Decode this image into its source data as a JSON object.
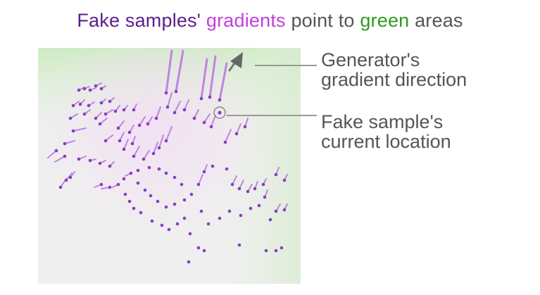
{
  "title": {
    "part1": "Fake samples'",
    "part2": "gradients",
    "part3": "point to",
    "part4": "green",
    "part5": "areas"
  },
  "annotations": {
    "gradient_direction": {
      "line1": "Generator's",
      "line2": "gradient direction"
    },
    "sample_location": {
      "line1": "Fake sample's",
      "line2": "current location"
    }
  },
  "colors": {
    "title_dark": "#5b1d8c",
    "title_magenta": "#c43fdc",
    "title_gray": "#555555",
    "title_green": "#2f9a22",
    "sample_dot": "#8a3cc4",
    "gradient_trail": "#b264e0",
    "green_region": "#cfeac4",
    "panel_bg": "#efefef",
    "leader_line": "#9a9a9a"
  },
  "legend_icons": [
    "arrow-icon",
    "circle-marker-icon"
  ]
}
